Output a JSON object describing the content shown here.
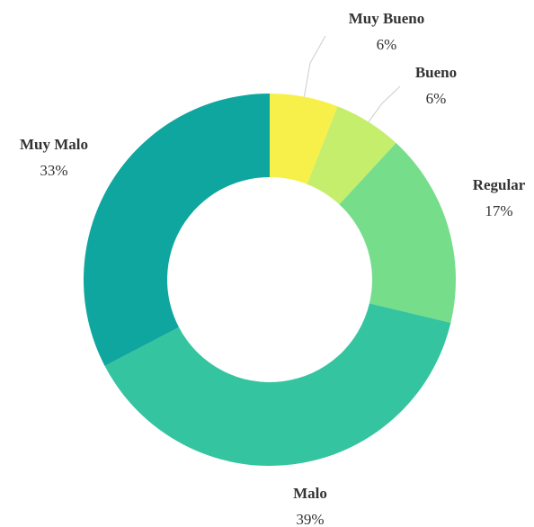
{
  "chart_data": {
    "type": "donut",
    "categories": [
      "Muy Bueno",
      "Bueno",
      "Regular",
      "Malo",
      "Muy Malo"
    ],
    "values": [
      6,
      6,
      17,
      39,
      33
    ],
    "value_labels": [
      "6%",
      "6%",
      "17%",
      "39%",
      "33%"
    ],
    "colors": [
      "#f8f04a",
      "#c4ee6c",
      "#76dd8b",
      "#35c4a0",
      "#0ea69e"
    ]
  }
}
